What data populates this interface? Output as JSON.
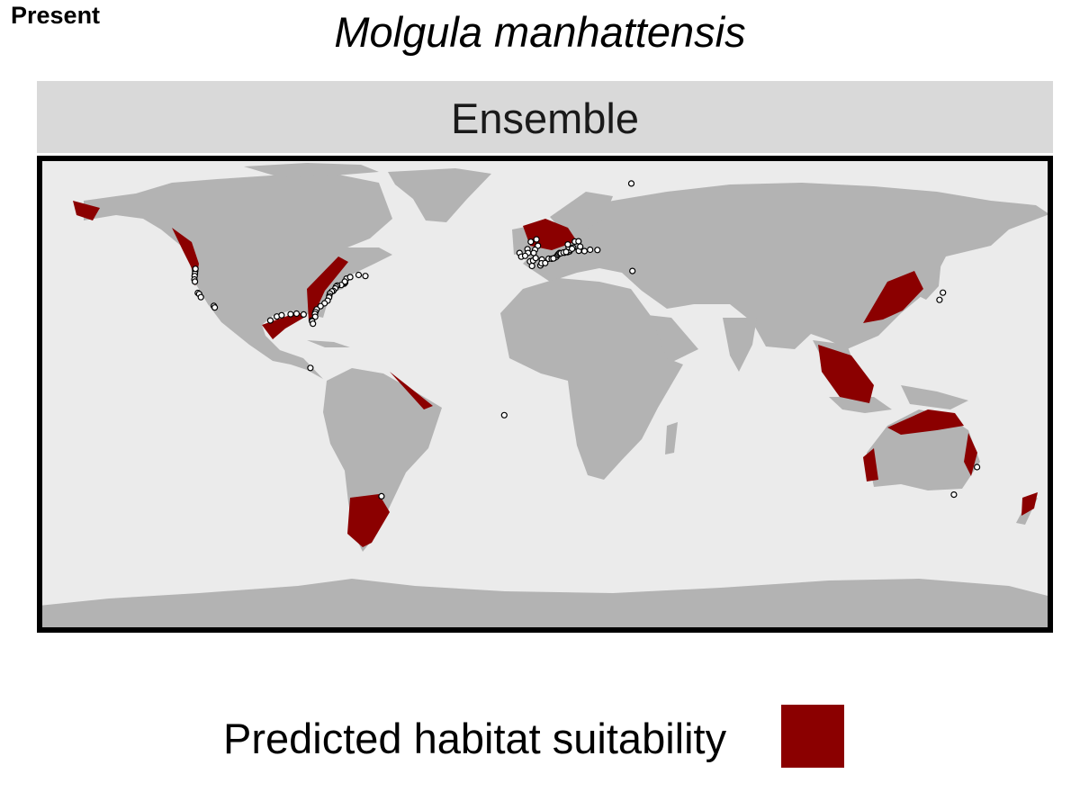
{
  "header": {
    "tag": "Present",
    "title": "Molgula manhattensis"
  },
  "panel": {
    "strip_label": "Ensemble"
  },
  "legend": {
    "label": "Predicted habitat suitability"
  },
  "colors": {
    "ocean": "#ebebeb",
    "land": "#b3b3b3",
    "suitable": "#8b0000",
    "frame": "#000000",
    "point_fill": "#ffffff",
    "point_stroke": "#000000"
  },
  "map_data": {
    "projection": "equirectangular",
    "extent": {
      "lon": [
        -180,
        180
      ],
      "lat": [
        -90,
        90
      ]
    },
    "occurrences": [
      [
        -123.9,
        46.5
      ],
      [
        -124.0,
        45.5
      ],
      [
        -123.8,
        47.3
      ],
      [
        -124.1,
        44.6
      ],
      [
        -124.2,
        43.3
      ],
      [
        -124.0,
        42.5
      ],
      [
        -123.0,
        38.2
      ],
      [
        -122.5,
        37.8
      ],
      [
        -121.9,
        36.6
      ],
      [
        -117.3,
        33.3
      ],
      [
        -117.0,
        32.7
      ],
      [
        -71.1,
        41.7
      ],
      [
        -70.8,
        42.1
      ],
      [
        -70.3,
        43.6
      ],
      [
        -70.9,
        42.5
      ],
      [
        -72.2,
        41.2
      ],
      [
        -73.6,
        41.0
      ],
      [
        -74.0,
        40.6
      ],
      [
        -74.3,
        39.9
      ],
      [
        -75.0,
        39.0
      ],
      [
        -75.5,
        38.8
      ],
      [
        -76.2,
        38.0
      ],
      [
        -76.4,
        37.1
      ],
      [
        -76.5,
        36.5
      ],
      [
        -77.0,
        35.3
      ],
      [
        -78.1,
        34.3
      ],
      [
        -79.5,
        33.2
      ],
      [
        -80.9,
        32.0
      ],
      [
        -81.3,
        31.0
      ],
      [
        -81.5,
        30.3
      ],
      [
        -81.4,
        29.2
      ],
      [
        -82.6,
        27.8
      ],
      [
        -82.5,
        27.5
      ],
      [
        -82.2,
        26.6
      ],
      [
        -69.0,
        44.2
      ],
      [
        -66.0,
        45.0
      ],
      [
        -63.6,
        44.6
      ],
      [
        -97.3,
        27.8
      ],
      [
        -95.0,
        29.3
      ],
      [
        -93.3,
        29.8
      ],
      [
        -90.1,
        30.2
      ],
      [
        -88.0,
        30.4
      ],
      [
        -85.5,
        30.1
      ],
      [
        -83.1,
        9.9
      ],
      [
        -57.9,
        -38.5
      ],
      [
        -14.4,
        -7.9
      ],
      [
        30.6,
        79.5
      ],
      [
        -5.3,
        50.1
      ],
      [
        -4.2,
        50.4
      ],
      [
        -3.3,
        51.4
      ],
      [
        -1.1,
        50.8
      ],
      [
        1.3,
        51.1
      ],
      [
        -4.6,
        48.4
      ],
      [
        -1.6,
        48.6
      ],
      [
        -1.2,
        49.4
      ],
      [
        0.1,
        49.5
      ],
      [
        2.4,
        51.1
      ],
      [
        3.3,
        51.4
      ],
      [
        4.0,
        51.8
      ],
      [
        4.5,
        52.5
      ],
      [
        4.8,
        52.9
      ],
      [
        5.2,
        53.3
      ],
      [
        6.9,
        53.4
      ],
      [
        8.0,
        53.6
      ],
      [
        8.7,
        53.9
      ],
      [
        9.0,
        54.4
      ],
      [
        8.4,
        55.5
      ],
      [
        8.1,
        56.5
      ],
      [
        10.6,
        57.6
      ],
      [
        11.9,
        57.7
      ],
      [
        10.0,
        55.3
      ],
      [
        -2.5,
        56.0
      ],
      [
        -3.0,
        58.4
      ],
      [
        -5.0,
        57.5
      ],
      [
        -6.2,
        54.7
      ],
      [
        -6.0,
        53.3
      ],
      [
        -9.0,
        53.3
      ],
      [
        -8.4,
        51.9
      ],
      [
        -7.0,
        52.2
      ],
      [
        -3.5,
        54.5
      ],
      [
        -4.0,
        53.3
      ],
      [
        3.0,
        51.2
      ],
      [
        5.6,
        53.2
      ],
      [
        6.6,
        53.5
      ],
      [
        7.5,
        53.7
      ],
      [
        9.6,
        54.9
      ],
      [
        12.0,
        54.1
      ],
      [
        14.0,
        54.0
      ],
      [
        16.0,
        54.5
      ],
      [
        18.6,
        54.4
      ],
      [
        12.5,
        55.7
      ],
      [
        31.0,
        46.5
      ],
      [
        141.0,
        38.3
      ],
      [
        139.8,
        35.6
      ],
      [
        153.1,
        -27.5
      ],
      [
        144.9,
        -37.9
      ]
    ]
  }
}
